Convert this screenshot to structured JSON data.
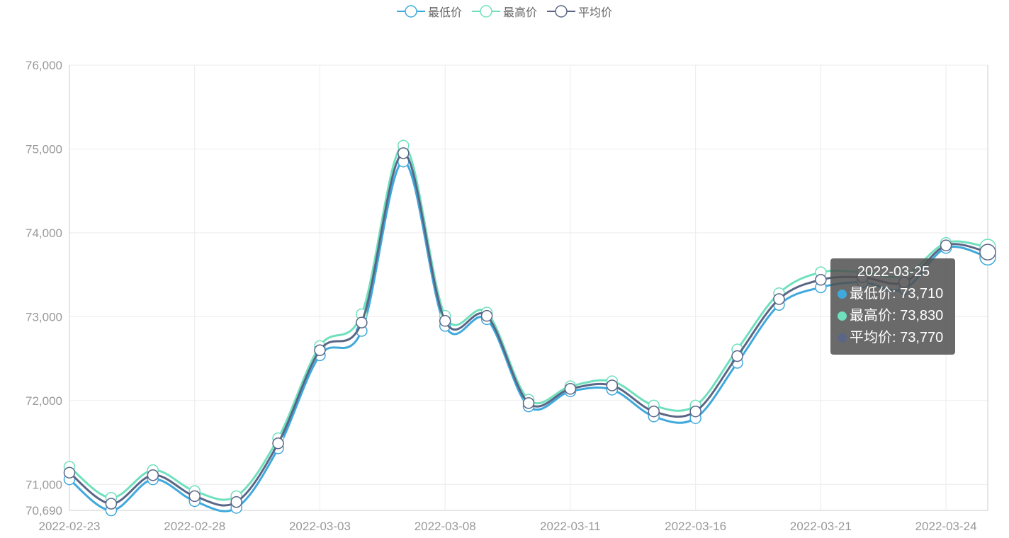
{
  "legend": {
    "items": [
      {
        "label": "最低价",
        "color": "#3fa9dc"
      },
      {
        "label": "最高价",
        "color": "#6fe0bd"
      },
      {
        "label": "平均价",
        "color": "#5b6686"
      }
    ]
  },
  "tooltip": {
    "date": "2022-03-25",
    "rows": [
      {
        "label": "最低价: 73,710",
        "color": "#3fa9dc"
      },
      {
        "label": "最高价: 73,830",
        "color": "#6fe0bd"
      },
      {
        "label": "平均价: 73,770",
        "color": "#5b6686"
      }
    ]
  },
  "chart_data": {
    "type": "line",
    "x": [
      "2022-02-23",
      "2022-02-24",
      "2022-02-25",
      "2022-02-28",
      "2022-03-01",
      "2022-03-02",
      "2022-03-03",
      "2022-03-04",
      "2022-03-07",
      "2022-03-08",
      "2022-03-09",
      "2022-03-10",
      "2022-03-11",
      "2022-03-14",
      "2022-03-15",
      "2022-03-16",
      "2022-03-17",
      "2022-03-18",
      "2022-03-21",
      "2022-03-22",
      "2022-03-23",
      "2022-03-24",
      "2022-03-25"
    ],
    "x_tick_labels": [
      "2022-02-23",
      "2022-02-28",
      "2022-03-03",
      "2022-03-08",
      "2022-03-11",
      "2022-03-16",
      "2022-03-21",
      "2022-03-24"
    ],
    "x_tick_indices": [
      0,
      3,
      6,
      9,
      12,
      15,
      18,
      21
    ],
    "y_tick_labels": [
      "70,690",
      "71,000",
      "72,000",
      "73,000",
      "74,000",
      "75,000",
      "76,000"
    ],
    "y_tick_values": [
      70690,
      71000,
      72000,
      73000,
      74000,
      75000,
      76000
    ],
    "ylim": [
      70690,
      76000
    ],
    "grid": true,
    "legend_position": "top-center",
    "series": [
      {
        "name": "最低价",
        "color": "#3fa9dc",
        "values": [
          71060,
          70690,
          71060,
          70800,
          70720,
          71430,
          72540,
          72830,
          74850,
          72890,
          72970,
          71930,
          72110,
          72130,
          71810,
          71790,
          72450,
          73140,
          73350,
          73410,
          73330,
          73820,
          73710
        ]
      },
      {
        "name": "最高价",
        "color": "#6fe0bd",
        "values": [
          71210,
          70840,
          71170,
          70920,
          70860,
          71550,
          72650,
          73030,
          75040,
          73010,
          73050,
          72010,
          72170,
          72230,
          71940,
          71940,
          72610,
          73280,
          73530,
          73530,
          73490,
          73880,
          73830
        ]
      },
      {
        "name": "平均价",
        "color": "#5b6686",
        "values": [
          71140,
          70770,
          71110,
          70860,
          70790,
          71490,
          72600,
          72930,
          74950,
          72950,
          73010,
          71970,
          72140,
          72180,
          71870,
          71870,
          72530,
          73210,
          73440,
          73470,
          73410,
          73850,
          73770
        ]
      }
    ]
  }
}
